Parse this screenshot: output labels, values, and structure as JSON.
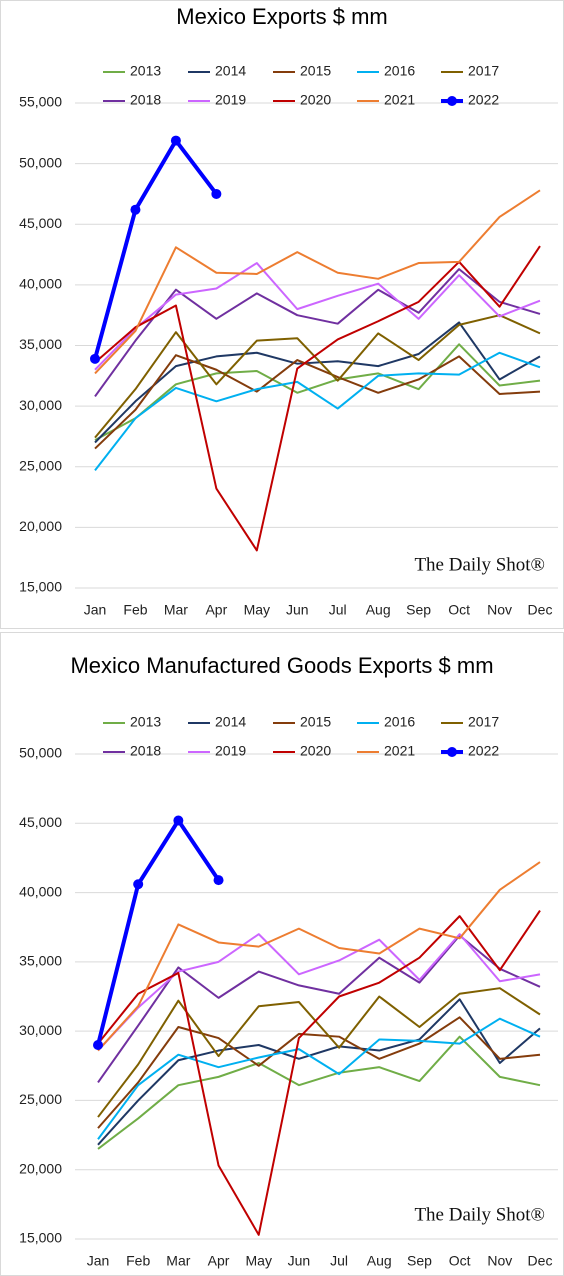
{
  "chart_data": [
    {
      "type": "line",
      "title": "Mexico Exports $ mm",
      "watermark": "The Daily Shot®",
      "categories": [
        "Jan",
        "Feb",
        "Mar",
        "Apr",
        "May",
        "Jun",
        "Jul",
        "Aug",
        "Sep",
        "Oct",
        "Nov",
        "Dec"
      ],
      "ylim": [
        15000,
        55000
      ],
      "yticks": [
        {
          "value": 15000,
          "label": "15,000"
        },
        {
          "value": 20000,
          "label": "20,000"
        },
        {
          "value": 25000,
          "label": "25,000"
        },
        {
          "value": 30000,
          "label": "30,000"
        },
        {
          "value": 35000,
          "label": "35,000"
        },
        {
          "value": 40000,
          "label": "40,000"
        },
        {
          "value": 45000,
          "label": "45,000"
        },
        {
          "value": 50000,
          "label": "50,000"
        },
        {
          "value": 55000,
          "label": "55,000"
        }
      ],
      "grid": true,
      "series": [
        {
          "name": "2013",
          "color": "#70ad47",
          "values": [
            27200,
            29000,
            31800,
            32700,
            32900,
            31100,
            32200,
            32700,
            31400,
            35100,
            31700,
            32100
          ]
        },
        {
          "name": "2014",
          "color": "#1f3864",
          "values": [
            27000,
            30400,
            33300,
            34100,
            34400,
            33500,
            33700,
            33300,
            34300,
            36900,
            32200,
            34100
          ]
        },
        {
          "name": "2015",
          "color": "#843c0c",
          "values": [
            26500,
            29700,
            34200,
            33000,
            31200,
            33800,
            32400,
            31100,
            32200,
            34100,
            31000,
            31200
          ]
        },
        {
          "name": "2016",
          "color": "#00b0f0",
          "values": [
            24700,
            29000,
            31500,
            30400,
            31400,
            32000,
            29800,
            32500,
            32700,
            32600,
            34400,
            33200
          ]
        },
        {
          "name": "2017",
          "color": "#7f6000",
          "values": [
            27400,
            31400,
            36100,
            31800,
            35400,
            35600,
            32100,
            36000,
            33800,
            36700,
            37500,
            36000
          ]
        },
        {
          "name": "2018",
          "color": "#7030a0",
          "values": [
            30800,
            35400,
            39600,
            37200,
            39300,
            37500,
            36800,
            39600,
            37700,
            41300,
            38600,
            37600
          ]
        },
        {
          "name": "2019",
          "color": "#cc66ff",
          "values": [
            33000,
            36400,
            39200,
            39700,
            41800,
            38000,
            39100,
            40100,
            37200,
            40800,
            37400,
            38700
          ]
        },
        {
          "name": "2020",
          "color": "#c00000",
          "values": [
            33600,
            36500,
            38300,
            23200,
            18100,
            33100,
            35500,
            37000,
            38600,
            41900,
            38200,
            43200
          ]
        },
        {
          "name": "2021",
          "color": "#ed7d31",
          "values": [
            32700,
            36200,
            43100,
            41000,
            40900,
            42700,
            41000,
            40500,
            41800,
            41900,
            45600,
            47800
          ]
        },
        {
          "name": "2022",
          "color": "#0000ff",
          "markers": true,
          "values": [
            33900,
            46200,
            51900,
            47500,
            null,
            null,
            null,
            null,
            null,
            null,
            null,
            null
          ]
        }
      ]
    },
    {
      "type": "line",
      "title": "Mexico Manufactured Goods Exports $ mm",
      "watermark": "The Daily Shot®",
      "categories": [
        "Jan",
        "Feb",
        "Mar",
        "Apr",
        "May",
        "Jun",
        "Jul",
        "Aug",
        "Sep",
        "Oct",
        "Nov",
        "Dec"
      ],
      "ylim": [
        15000,
        50000
      ],
      "yticks": [
        {
          "value": 15000,
          "label": "15,000"
        },
        {
          "value": 20000,
          "label": "20,000"
        },
        {
          "value": 25000,
          "label": "25,000"
        },
        {
          "value": 30000,
          "label": "30,000"
        },
        {
          "value": 35000,
          "label": "35,000"
        },
        {
          "value": 40000,
          "label": "40,000"
        },
        {
          "value": 45000,
          "label": "45,000"
        },
        {
          "value": 50000,
          "label": "50,000"
        }
      ],
      "grid": true,
      "series": [
        {
          "name": "2013",
          "color": "#70ad47",
          "values": [
            21500,
            23700,
            26100,
            26700,
            27700,
            26100,
            27000,
            27400,
            26400,
            29600,
            26700,
            26100
          ]
        },
        {
          "name": "2014",
          "color": "#1f3864",
          "values": [
            21800,
            25000,
            27900,
            28600,
            29000,
            28000,
            28900,
            28600,
            29400,
            32300,
            27700,
            30200
          ]
        },
        {
          "name": "2015",
          "color": "#843c0c",
          "values": [
            23000,
            26300,
            30300,
            29500,
            27500,
            29800,
            29600,
            28000,
            29100,
            31000,
            28000,
            28300
          ]
        },
        {
          "name": "2016",
          "color": "#00b0f0",
          "values": [
            22200,
            26100,
            28300,
            27400,
            28100,
            28700,
            26900,
            29400,
            29300,
            29100,
            30900,
            29600
          ]
        },
        {
          "name": "2017",
          "color": "#7f6000",
          "values": [
            23800,
            27600,
            32200,
            28200,
            31800,
            32100,
            28800,
            32500,
            30300,
            32700,
            33100,
            31200
          ]
        },
        {
          "name": "2018",
          "color": "#7030a0",
          "values": [
            26300,
            30400,
            34600,
            32400,
            34300,
            33300,
            32700,
            35300,
            33500,
            36900,
            34500,
            33200
          ]
        },
        {
          "name": "2019",
          "color": "#cc66ff",
          "values": [
            28600,
            31700,
            34300,
            35000,
            37000,
            34100,
            35100,
            36600,
            33700,
            37000,
            33600,
            34100
          ]
        },
        {
          "name": "2020",
          "color": "#c00000",
          "values": [
            29100,
            32700,
            34200,
            20300,
            15300,
            29500,
            32500,
            33500,
            35300,
            38300,
            34400,
            38700
          ]
        },
        {
          "name": "2021",
          "color": "#ed7d31",
          "values": [
            28600,
            31800,
            37700,
            36400,
            36100,
            37400,
            36000,
            35600,
            37400,
            36700,
            40200,
            42200
          ]
        },
        {
          "name": "2022",
          "color": "#0000ff",
          "markers": true,
          "values": [
            29000,
            40600,
            45200,
            40900,
            null,
            null,
            null,
            null,
            null,
            null,
            null,
            null
          ]
        }
      ]
    }
  ]
}
